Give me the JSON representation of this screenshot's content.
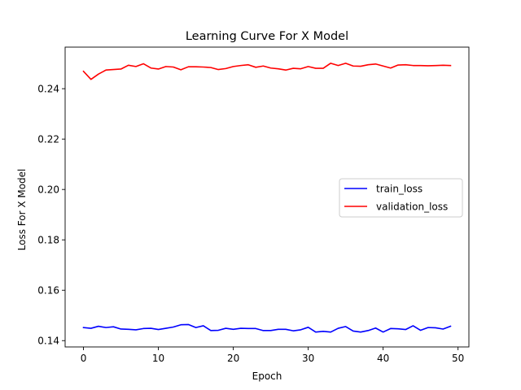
{
  "chart_data": {
    "type": "line",
    "title": "Learning Curve For X Model",
    "xlabel": "Epoch",
    "ylabel": "Loss For X Model",
    "xlim": [
      -2.45,
      51.45
    ],
    "ylim": [
      0.1375,
      0.2565
    ],
    "xticks": [
      0,
      10,
      20,
      30,
      40,
      50
    ],
    "yticks": [
      0.14,
      0.16,
      0.18,
      0.2,
      0.22,
      0.24
    ],
    "ytick_labels": [
      "0.14",
      "0.16",
      "0.18",
      "0.20",
      "0.22",
      "0.24"
    ],
    "grid": false,
    "legend_position": "center-right",
    "x": [
      0,
      1,
      2,
      3,
      4,
      5,
      6,
      7,
      8,
      9,
      10,
      11,
      12,
      13,
      14,
      15,
      16,
      17,
      18,
      19,
      20,
      21,
      22,
      23,
      24,
      25,
      26,
      27,
      28,
      29,
      30,
      31,
      32,
      33,
      34,
      35,
      36,
      37,
      38,
      39,
      40,
      41,
      42,
      43,
      44,
      45,
      46,
      47,
      48,
      49
    ],
    "series": [
      {
        "name": "train_loss",
        "color": "#0000ff",
        "values": [
          0.1452,
          0.1449,
          0.1457,
          0.1452,
          0.1455,
          0.1446,
          0.1445,
          0.1443,
          0.1448,
          0.1449,
          0.1444,
          0.1449,
          0.1454,
          0.1463,
          0.1464,
          0.1452,
          0.1459,
          0.144,
          0.1441,
          0.1449,
          0.1445,
          0.1449,
          0.1448,
          0.1448,
          0.144,
          0.144,
          0.1445,
          0.1445,
          0.1439,
          0.1443,
          0.1453,
          0.1434,
          0.1437,
          0.1434,
          0.1449,
          0.1456,
          0.1438,
          0.1434,
          0.144,
          0.145,
          0.1434,
          0.1448,
          0.1447,
          0.1444,
          0.1459,
          0.1441,
          0.1452,
          0.1451,
          0.1446,
          0.1457
        ]
      },
      {
        "name": "validation_loss",
        "color": "#ff0000",
        "values": [
          0.2469,
          0.2437,
          0.2458,
          0.2474,
          0.2476,
          0.2478,
          0.2493,
          0.2488,
          0.2499,
          0.2482,
          0.2478,
          0.2488,
          0.2486,
          0.2475,
          0.2487,
          0.2487,
          0.2486,
          0.2484,
          0.2476,
          0.248,
          0.2488,
          0.2492,
          0.2495,
          0.2485,
          0.249,
          0.2482,
          0.2479,
          0.2474,
          0.2481,
          0.2479,
          0.2488,
          0.2481,
          0.2481,
          0.2501,
          0.2492,
          0.2501,
          0.249,
          0.2489,
          0.2495,
          0.2498,
          0.249,
          0.2482,
          0.2494,
          0.2495,
          0.2492,
          0.2492,
          0.2491,
          0.2492,
          0.2493,
          0.2492
        ]
      }
    ]
  }
}
